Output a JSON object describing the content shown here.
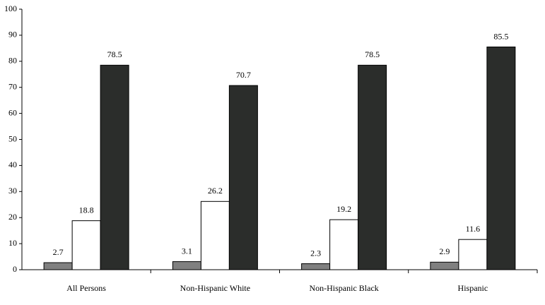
{
  "chart_data": {
    "type": "bar",
    "categories": [
      "All Persons",
      "Non-Hispanic White",
      "Non-Hispanic Black",
      "Hispanic"
    ],
    "series": [
      {
        "color": "#808080",
        "values": [
          2.7,
          3.1,
          2.3,
          2.9
        ]
      },
      {
        "color": "#ffffff",
        "values": [
          18.8,
          26.2,
          19.2,
          11.6
        ]
      },
      {
        "color": "#2b2d2b",
        "values": [
          78.5,
          70.7,
          78.5,
          85.5
        ]
      }
    ],
    "ylim": [
      0,
      100
    ],
    "yticks": [
      0,
      10,
      20,
      30,
      40,
      50,
      60,
      70,
      80,
      90,
      100
    ],
    "grid": false
  }
}
